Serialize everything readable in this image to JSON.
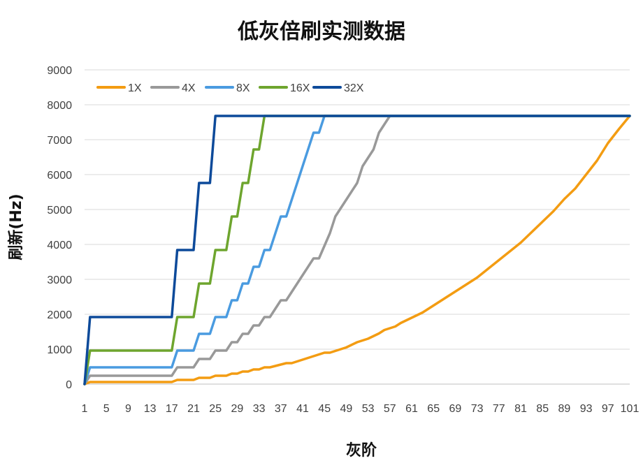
{
  "chart_data": {
    "type": "line",
    "title": "低灰倍刷实测数据",
    "xlabel": "灰阶",
    "ylabel": "刷新(Hz)",
    "xlim": [
      1,
      101
    ],
    "ylim": [
      0,
      9000
    ],
    "y_ticks": [
      0,
      1000,
      2000,
      3000,
      4000,
      5000,
      6000,
      7000,
      8000,
      9000
    ],
    "x_ticks": [
      1,
      5,
      9,
      13,
      17,
      21,
      25,
      29,
      33,
      37,
      41,
      45,
      49,
      53,
      57,
      61,
      65,
      69,
      73,
      77,
      81,
      85,
      89,
      93,
      97,
      101
    ],
    "grid": "horizontal",
    "legend_position": "top-left",
    "series": [
      {
        "name": "1X",
        "color": "#f39c12",
        "points": [
          [
            1,
            0
          ],
          [
            2,
            60
          ],
          [
            17,
            60
          ],
          [
            18,
            120
          ],
          [
            21,
            120
          ],
          [
            22,
            180
          ],
          [
            24,
            180
          ],
          [
            25,
            240
          ],
          [
            27,
            240
          ],
          [
            28,
            300
          ],
          [
            29,
            300
          ],
          [
            30,
            360
          ],
          [
            31,
            360
          ],
          [
            32,
            420
          ],
          [
            33,
            420
          ],
          [
            34,
            480
          ],
          [
            35,
            480
          ],
          [
            37,
            560
          ],
          [
            38,
            600
          ],
          [
            39,
            600
          ],
          [
            41,
            700
          ],
          [
            43,
            800
          ],
          [
            45,
            900
          ],
          [
            46,
            900
          ],
          [
            48,
            1000
          ],
          [
            49,
            1050
          ],
          [
            51,
            1200
          ],
          [
            53,
            1300
          ],
          [
            55,
            1450
          ],
          [
            56,
            1550
          ],
          [
            57,
            1600
          ],
          [
            58,
            1650
          ],
          [
            59,
            1750
          ],
          [
            61,
            1900
          ],
          [
            63,
            2050
          ],
          [
            65,
            2250
          ],
          [
            67,
            2450
          ],
          [
            69,
            2650
          ],
          [
            71,
            2850
          ],
          [
            73,
            3050
          ],
          [
            75,
            3300
          ],
          [
            77,
            3550
          ],
          [
            79,
            3800
          ],
          [
            81,
            4050
          ],
          [
            83,
            4350
          ],
          [
            85,
            4650
          ],
          [
            87,
            4950
          ],
          [
            89,
            5300
          ],
          [
            91,
            5600
          ],
          [
            93,
            6000
          ],
          [
            95,
            6400
          ],
          [
            97,
            6900
          ],
          [
            99,
            7300
          ],
          [
            101,
            7680
          ],
          [
            102,
            7680
          ],
          [
            120,
            7680
          ]
        ]
      },
      {
        "name": "4X",
        "color": "#999999",
        "points": [
          [
            1,
            0
          ],
          [
            2,
            240
          ],
          [
            17,
            240
          ],
          [
            18,
            480
          ],
          [
            21,
            480
          ],
          [
            22,
            720
          ],
          [
            24,
            720
          ],
          [
            25,
            960
          ],
          [
            27,
            960
          ],
          [
            28,
            1200
          ],
          [
            29,
            1200
          ],
          [
            30,
            1440
          ],
          [
            31,
            1440
          ],
          [
            32,
            1680
          ],
          [
            33,
            1680
          ],
          [
            34,
            1920
          ],
          [
            35,
            1920
          ],
          [
            37,
            2400
          ],
          [
            38,
            2400
          ],
          [
            39,
            2640
          ],
          [
            41,
            3120
          ],
          [
            43,
            3600
          ],
          [
            44,
            3600
          ],
          [
            46,
            4320
          ],
          [
            47,
            4800
          ],
          [
            49,
            5280
          ],
          [
            51,
            5760
          ],
          [
            52,
            6240
          ],
          [
            54,
            6720
          ],
          [
            55,
            7200
          ],
          [
            56,
            7440
          ],
          [
            57,
            7680
          ],
          [
            120,
            7680
          ]
        ]
      },
      {
        "name": "8X",
        "color": "#4a9be0",
        "points": [
          [
            1,
            0
          ],
          [
            2,
            480
          ],
          [
            17,
            480
          ],
          [
            18,
            960
          ],
          [
            21,
            960
          ],
          [
            22,
            1440
          ],
          [
            24,
            1440
          ],
          [
            25,
            1920
          ],
          [
            27,
            1920
          ],
          [
            28,
            2400
          ],
          [
            29,
            2400
          ],
          [
            30,
            2880
          ],
          [
            31,
            2880
          ],
          [
            32,
            3360
          ],
          [
            33,
            3360
          ],
          [
            34,
            3840
          ],
          [
            35,
            3840
          ],
          [
            37,
            4800
          ],
          [
            38,
            4800
          ],
          [
            39,
            5280
          ],
          [
            40,
            5760
          ],
          [
            41,
            6240
          ],
          [
            42,
            6720
          ],
          [
            43,
            7200
          ],
          [
            44,
            7200
          ],
          [
            45,
            7680
          ],
          [
            120,
            7680
          ]
        ]
      },
      {
        "name": "16X",
        "color": "#6ea52e",
        "points": [
          [
            1,
            0
          ],
          [
            2,
            960
          ],
          [
            17,
            960
          ],
          [
            18,
            1920
          ],
          [
            21,
            1920
          ],
          [
            22,
            2880
          ],
          [
            24,
            2880
          ],
          [
            25,
            3840
          ],
          [
            27,
            3840
          ],
          [
            28,
            4800
          ],
          [
            29,
            4800
          ],
          [
            30,
            5760
          ],
          [
            31,
            5760
          ],
          [
            32,
            6720
          ],
          [
            33,
            6720
          ],
          [
            34,
            7680
          ],
          [
            120,
            7680
          ]
        ]
      },
      {
        "name": "32X",
        "color": "#0d4a9a",
        "points": [
          [
            1,
            0
          ],
          [
            2,
            1920
          ],
          [
            17,
            1920
          ],
          [
            18,
            3840
          ],
          [
            21,
            3840
          ],
          [
            22,
            5760
          ],
          [
            24,
            5760
          ],
          [
            25,
            7680
          ],
          [
            120,
            7680
          ]
        ]
      }
    ]
  }
}
